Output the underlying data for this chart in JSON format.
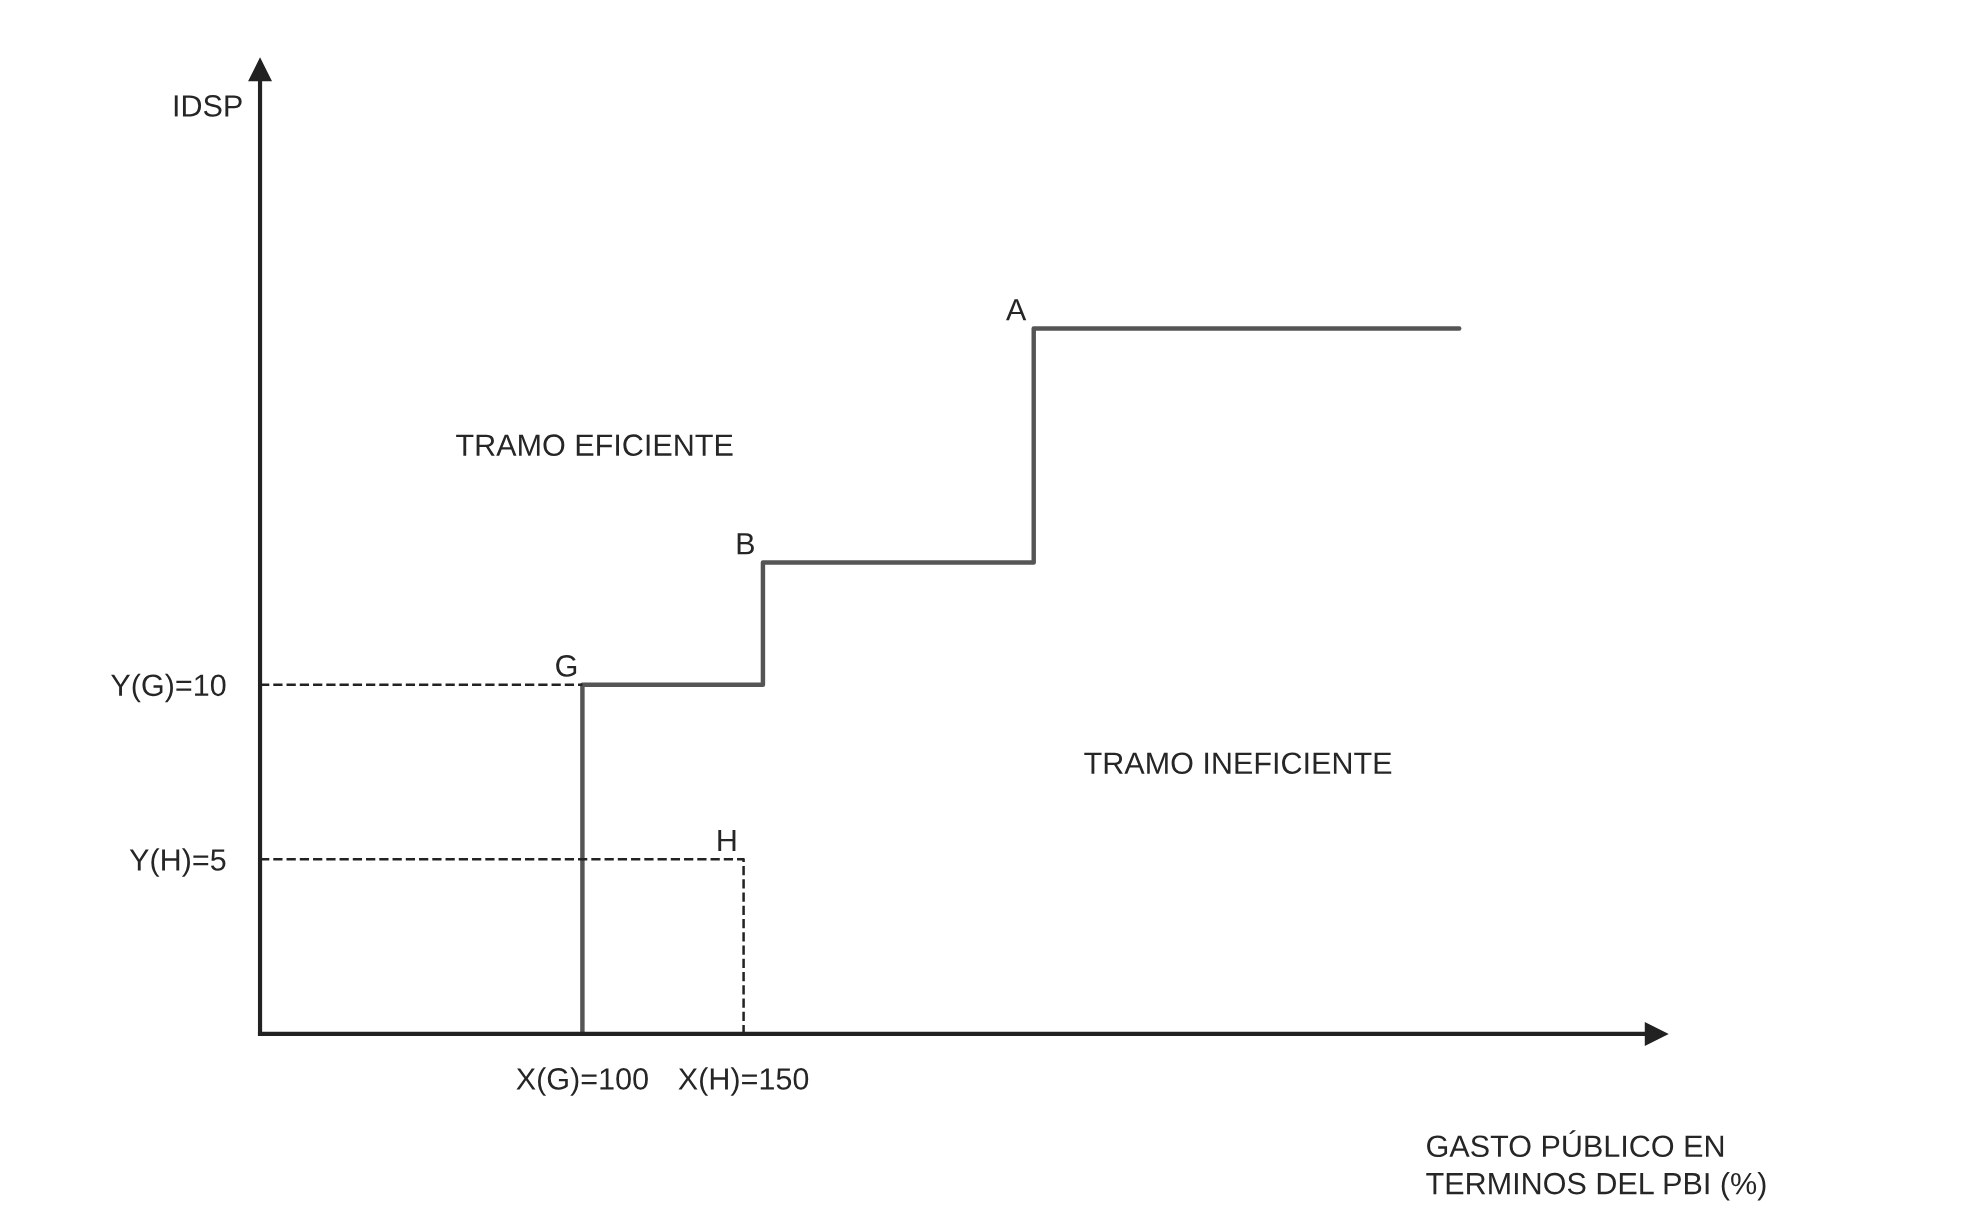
{
  "chart_data": {
    "type": "line",
    "xlabel": "GASTO PÚBLICO EN\nTERMINOS DEL PBI (%)",
    "ylabel": "IDSP",
    "series": [
      {
        "x": [
          100,
          100,
          156,
          156,
          240,
          240,
          372
        ],
        "values": [
          0,
          10,
          10,
          13.5,
          13.5,
          20.2,
          20.2
        ],
        "color": "#555555",
        "line_style": "solid"
      },
      {
        "x": [
          0,
          100
        ],
        "values": [
          10,
          10
        ],
        "color": "#222222",
        "line_style": "dashed"
      },
      {
        "x": [
          0,
          150,
          150
        ],
        "values": [
          5,
          5,
          0
        ],
        "color": "#222222",
        "line_style": "dashed"
      }
    ],
    "annotations": [
      {
        "text": "G",
        "x": 100,
        "y": 10
      },
      {
        "text": "B",
        "x": 156,
        "y": 13.5
      },
      {
        "text": "A",
        "x": 240,
        "y": 20.2
      },
      {
        "text": "H",
        "x": 150,
        "y": 5
      },
      "TRAMO EFICIENTE",
      "TRAMO INEFICIENTE"
    ],
    "xlim": [
      0,
      433
    ],
    "ylim": [
      0,
      27.6
    ],
    "xticks": [
      {
        "value": 100,
        "label": "X(G)=100"
      },
      {
        "value": 150,
        "label": "X(H)=150"
      }
    ],
    "yticks": [
      {
        "value": 10,
        "label": "Y(G)=10"
      },
      {
        "value": 5,
        "label": "Y(H)=5"
      }
    ],
    "grid": false,
    "legend": false,
    "marker": "none"
  }
}
